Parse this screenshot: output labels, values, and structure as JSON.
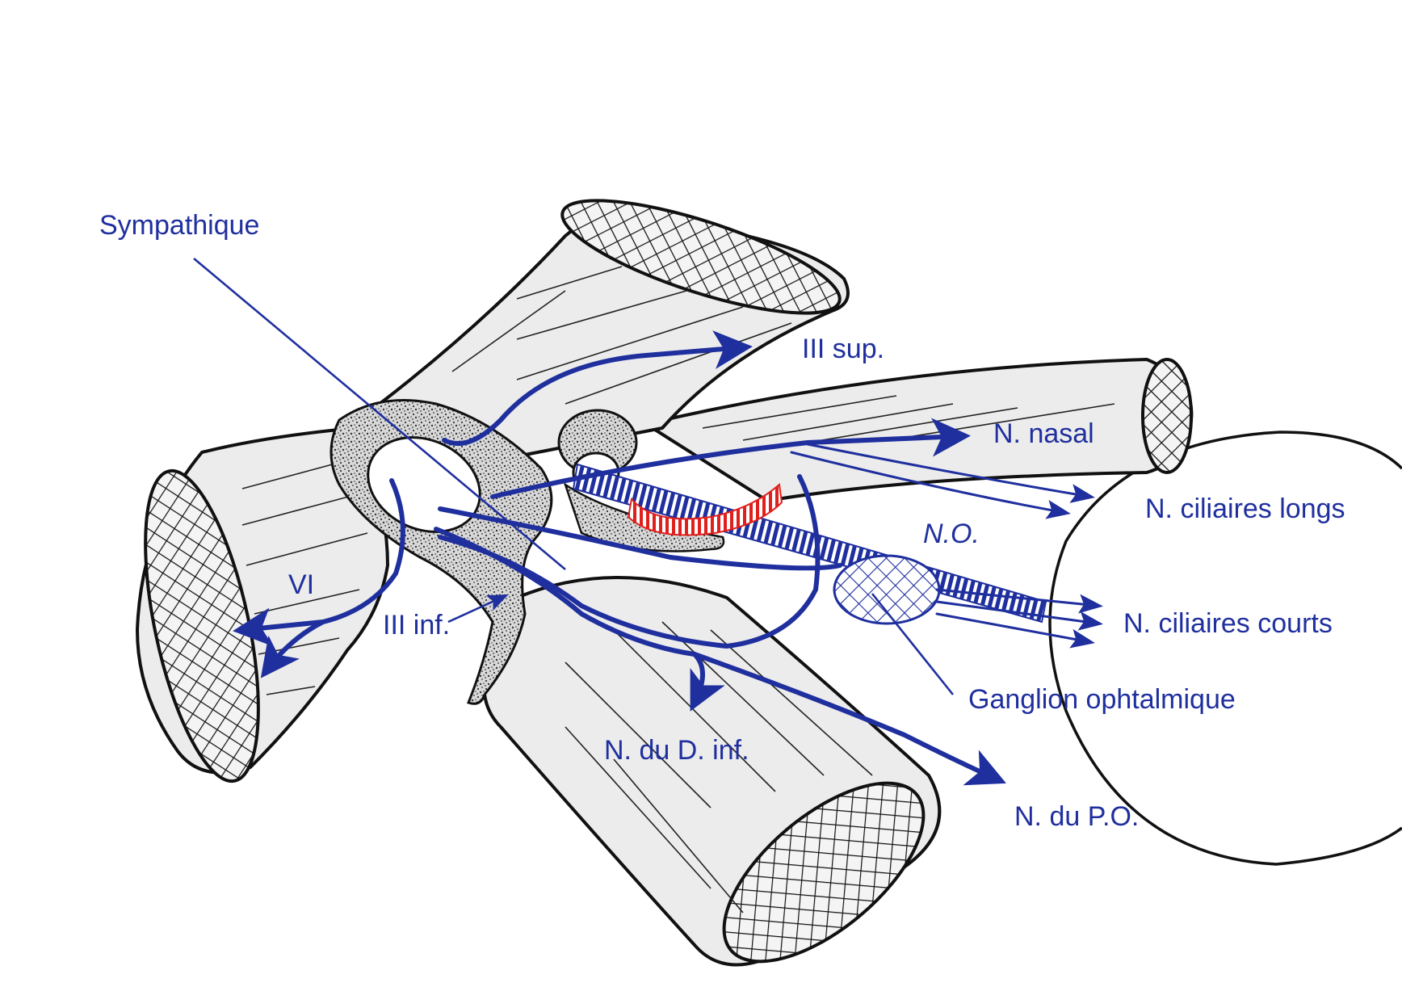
{
  "labels": {
    "sympathique": "Sympathique",
    "iii_sup": "III sup.",
    "n_nasal": "N. nasal",
    "n_ciliaires_longs": "N. ciliaires longs",
    "n_o": "N.O.",
    "vi": "VI",
    "iii_inf": "III inf.",
    "n_ciliaires_courts": "N. ciliaires courts",
    "ganglion_ophtalmique": "Ganglion ophtalmique",
    "n_du_d_inf": "N. du D. inf.",
    "n_du_p_o": "N. du P.O."
  },
  "colors": {
    "nerve": "#1f2f9e",
    "artery": "#e0201c",
    "outline": "#111111",
    "muscle_fill": "#ececec",
    "tendon_ring": "#b9b9b9"
  }
}
